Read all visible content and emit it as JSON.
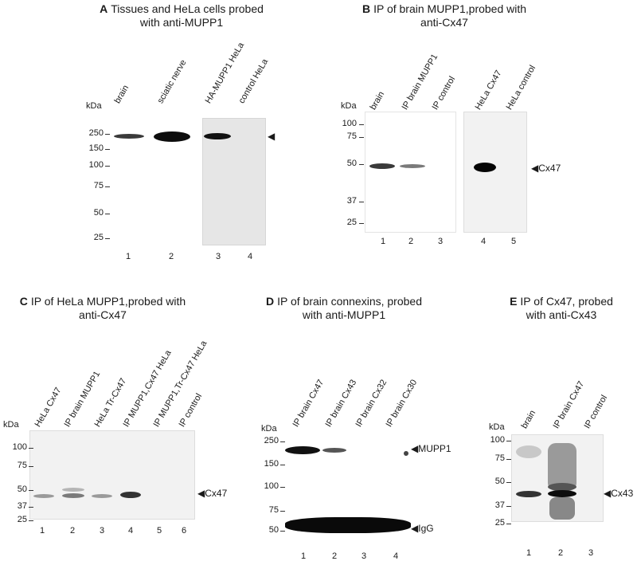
{
  "panelA": {
    "letter": "A",
    "title1": "Tissues and HeLa cells probed",
    "title2": "with anti-MUPP1",
    "kda": "kDa",
    "markers": [
      "250",
      "150",
      "100",
      "75",
      "50",
      "25"
    ],
    "lanes": [
      "brain",
      "sciatic nerve",
      "HA-MUPP1 HeLa",
      "control HeLa"
    ],
    "lane_numbers": [
      "1",
      "2",
      "3",
      "4"
    ]
  },
  "panelB": {
    "letter": "B",
    "title1": "IP of brain MUPP1,probed with",
    "title2": "anti-Cx47",
    "kda": "kDa",
    "markers": [
      "100",
      "75",
      "50",
      "37",
      "25"
    ],
    "lanes": [
      "brain",
      "IP brain MUPP1",
      "IP control",
      "HeLa Cx47",
      "HeLa control"
    ],
    "lane_numbers": [
      "1",
      "2",
      "3",
      "4",
      "5"
    ],
    "band_label": "Cx47"
  },
  "panelC": {
    "letter": "C",
    "title1": "IP of HeLa MUPP1,probed with",
    "title2": "anti-Cx47",
    "kda": "kDa",
    "markers": [
      "100",
      "75",
      "50",
      "37",
      "25"
    ],
    "lanes": [
      "HeLa Cx47",
      "IP brain MUPP1",
      "HeLa Tr-Cx47",
      "IP MUPP1,Cx47 HeLa",
      "IP MUPP1,Tr-Cx47 HeLa",
      "IP control"
    ],
    "lane_numbers": [
      "1",
      "2",
      "3",
      "4",
      "5",
      "6"
    ],
    "band_label": "Cx47"
  },
  "panelD": {
    "letter": "D",
    "title1": "IP of brain connexins, probed",
    "title2": "with anti-MUPP1",
    "kda": "kDa",
    "markers": [
      "250",
      "150",
      "100",
      "75",
      "50"
    ],
    "lanes": [
      "IP brain Cx47",
      "IP brain Cx43",
      "IP brain Cx32",
      "IP brain Cx30"
    ],
    "lane_numbers": [
      "1",
      "2",
      "3",
      "4"
    ],
    "band_label_top": "MUPP1",
    "band_label_bottom": "IgG"
  },
  "panelE": {
    "letter": "E",
    "title1": "IP of Cx47, probed",
    "title2": "with anti-Cx43",
    "kda": "kDa",
    "markers": [
      "100",
      "75",
      "50",
      "37",
      "25"
    ],
    "lanes": [
      "brain",
      "IP brain Cx47",
      "IP control"
    ],
    "lane_numbers": [
      "1",
      "2",
      "3"
    ],
    "band_label": "Cx43"
  }
}
